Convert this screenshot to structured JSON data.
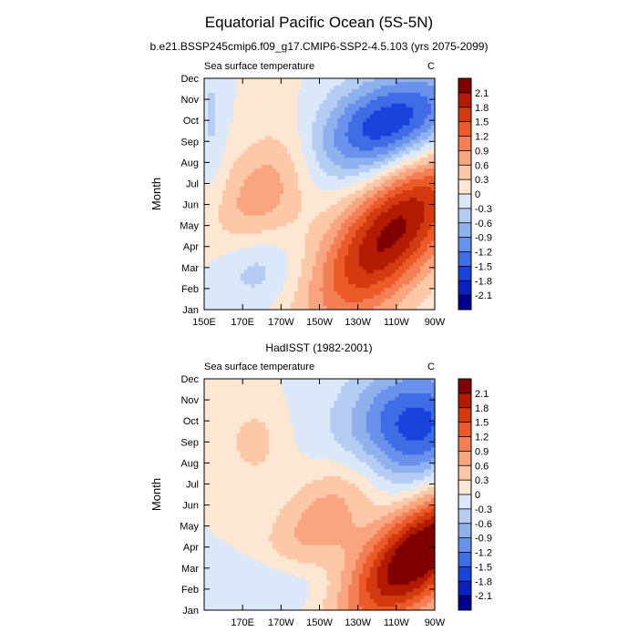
{
  "title": "Equatorial Pacific Ocean (5S-5N)",
  "colorbar": {
    "labels": [
      "2.1",
      "1.8",
      "1.5",
      "1.2",
      "0.9",
      "0.6",
      "0.3",
      "0",
      "-0.3",
      "-0.6",
      "-0.9",
      "-1.2",
      "-1.5",
      "-1.8",
      "-2.1"
    ],
    "colors": [
      "#800000",
      "#b31a00",
      "#d43a0f",
      "#ec5a2a",
      "#f47f55",
      "#f9a57f",
      "#fcc8a8",
      "#fde6d2",
      "#dbe8f9",
      "#b6cdf3",
      "#8fb1ee",
      "#6a91ec",
      "#3f6de6",
      "#1843dc",
      "#0a20c0",
      "#00008f"
    ]
  },
  "chart_data": [
    {
      "type": "heatmap",
      "title": "b.e21.BSSP245cmip6.f09_g17.CMIP6-SSP2-4.5.103 (yrs 2075-2099)",
      "left_label": "Sea surface temperature",
      "right_label": "C",
      "ylabel": "Month",
      "x_tick_labels": [
        "150E",
        "170E",
        "170W",
        "150W",
        "130W",
        "110W",
        "90W"
      ],
      "y_tick_labels": [
        "Jan",
        "Feb",
        "Mar",
        "Apr",
        "May",
        "Jun",
        "Jul",
        "Aug",
        "Sep",
        "Oct",
        "Nov",
        "Dec"
      ],
      "x_range": [
        150,
        270
      ],
      "features": [
        {
          "type": "warm",
          "lon": 248,
          "month": 4.7,
          "slon": 34,
          "smon": 1.9,
          "rot": -38,
          "amp": 2.2
        },
        {
          "type": "warm",
          "lon": 182,
          "month": 6.8,
          "slon": 24,
          "smon": 1.7,
          "rot": -42,
          "amp": 0.85
        },
        {
          "type": "cold",
          "lon": 248,
          "month": 9.8,
          "slon": 30,
          "smon": 1.6,
          "rot": -12,
          "amp": -1.85
        },
        {
          "type": "cold",
          "lon": 176,
          "month": 3.0,
          "slon": 16,
          "smon": 1.3,
          "rot": 0,
          "amp": -0.55
        },
        {
          "type": "cold",
          "lon": 154,
          "month": 10.0,
          "slon": 5,
          "smon": 2.6,
          "rot": 0,
          "amp": -0.35
        }
      ]
    },
    {
      "type": "heatmap",
      "title": "HadISST (1982-2001)",
      "left_label": "Sea surface temperature",
      "right_label": "C",
      "ylabel": "Month",
      "x_tick_labels": [
        "170E",
        "170W",
        "150W",
        "130W",
        "110W",
        "90W"
      ],
      "y_tick_labels": [
        "Jan",
        "Feb",
        "Mar",
        "Apr",
        "May",
        "Jun",
        "Jul",
        "Aug",
        "Sep",
        "Oct",
        "Nov",
        "Dec"
      ],
      "x_range": [
        150,
        270
      ],
      "features": [
        {
          "type": "warm",
          "lon": 262,
          "month": 3.7,
          "slon": 30,
          "smon": 1.6,
          "rot": -32,
          "amp": 2.6
        },
        {
          "type": "warm",
          "lon": 214,
          "month": 5.6,
          "slon": 28,
          "smon": 1.5,
          "rot": -35,
          "amp": 0.8
        },
        {
          "type": "warm",
          "lon": 176,
          "month": 9.0,
          "slon": 10,
          "smon": 1.2,
          "rot": 0,
          "amp": 0.45
        },
        {
          "type": "cold",
          "lon": 258,
          "month": 9.7,
          "slon": 24,
          "smon": 2.0,
          "rot": -8,
          "amp": -1.75
        },
        {
          "type": "cold",
          "lon": 186,
          "month": 2.2,
          "slon": 22,
          "smon": 1.0,
          "rot": 0,
          "amp": -0.5
        }
      ]
    }
  ]
}
